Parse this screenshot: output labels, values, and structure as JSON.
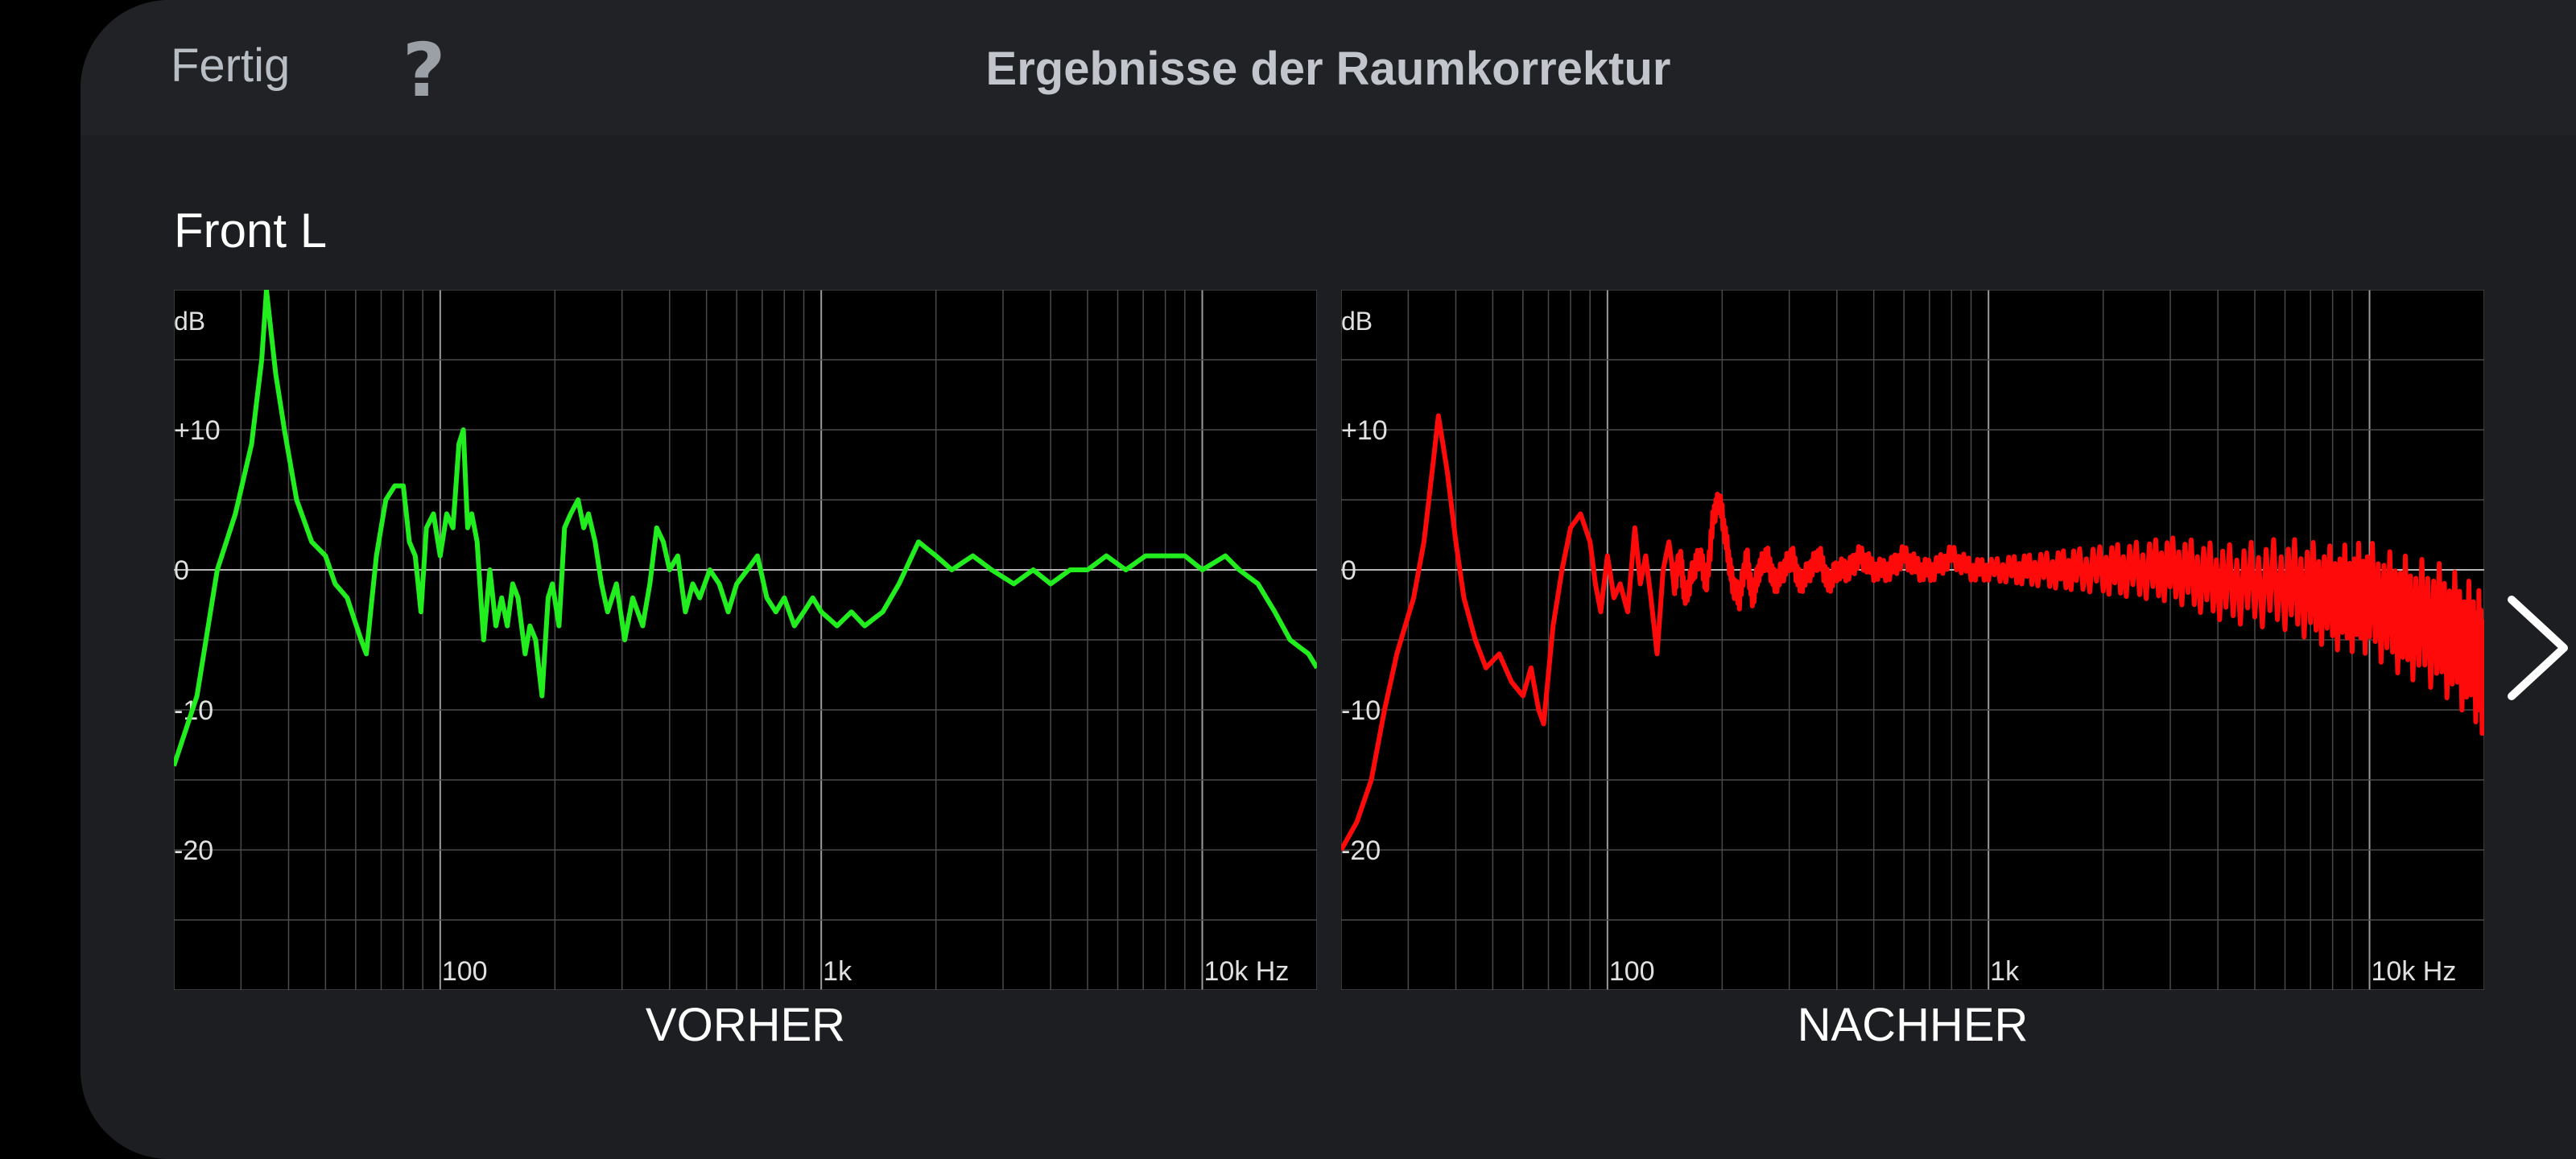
{
  "header": {
    "done_label": "Fertig",
    "help_label": "?",
    "title": "Ergebnisse der Raumkorrektur"
  },
  "channel": "Front L",
  "colors": {
    "before_curve": "#22ee1f",
    "after_curve": "#ff0a0a",
    "background": "#1c1e22",
    "chart_bg": "#000000"
  },
  "icons": {
    "help": "question-mark-icon",
    "next": "chevron-right-icon"
  },
  "chart_data": [
    {
      "type": "line",
      "caption": "VORHER",
      "x_scale": "log",
      "xlim": [
        20,
        20000
      ],
      "ylim": [
        -30,
        20
      ],
      "yunit": "dB",
      "xtick_labels": [
        "100",
        "1k",
        "10k Hz"
      ],
      "xtick_values": [
        100,
        1000,
        10000
      ],
      "ytick_labels": [
        "+10",
        "0",
        "-10",
        "-20"
      ],
      "ytick_values": [
        10,
        0,
        -10,
        -20
      ],
      "grid": true,
      "series": [
        {
          "color": "#22ee1f",
          "points": [
            [
              20,
              -14
            ],
            [
              23,
              -9
            ],
            [
              26,
              0
            ],
            [
              29,
              4
            ],
            [
              32,
              9
            ],
            [
              34,
              15
            ],
            [
              35,
              20
            ],
            [
              37,
              14
            ],
            [
              39,
              10
            ],
            [
              42,
              5
            ],
            [
              46,
              2
            ],
            [
              50,
              1
            ],
            [
              53,
              -1
            ],
            [
              57,
              -2
            ],
            [
              62,
              -5
            ],
            [
              64,
              -6
            ],
            [
              68,
              1
            ],
            [
              72,
              5
            ],
            [
              76,
              6
            ],
            [
              80,
              6
            ],
            [
              83,
              2
            ],
            [
              86,
              1
            ],
            [
              89,
              -3
            ],
            [
              92,
              3
            ],
            [
              96,
              4
            ],
            [
              100,
              1
            ],
            [
              104,
              4
            ],
            [
              108,
              3
            ],
            [
              112,
              9
            ],
            [
              115,
              10
            ],
            [
              118,
              3
            ],
            [
              121,
              4
            ],
            [
              125,
              2
            ],
            [
              130,
              -5
            ],
            [
              135,
              0
            ],
            [
              140,
              -4
            ],
            [
              145,
              -2
            ],
            [
              150,
              -4
            ],
            [
              155,
              -1
            ],
            [
              160,
              -2
            ],
            [
              167,
              -6
            ],
            [
              172,
              -4
            ],
            [
              178,
              -5
            ],
            [
              185,
              -9
            ],
            [
              192,
              -2
            ],
            [
              197,
              -1
            ],
            [
              205,
              -4
            ],
            [
              212,
              3
            ],
            [
              220,
              4
            ],
            [
              230,
              5
            ],
            [
              238,
              3
            ],
            [
              245,
              4
            ],
            [
              255,
              2
            ],
            [
              265,
              -1
            ],
            [
              275,
              -3
            ],
            [
              290,
              -1
            ],
            [
              305,
              -5
            ],
            [
              320,
              -2
            ],
            [
              340,
              -4
            ],
            [
              355,
              -1
            ],
            [
              370,
              3
            ],
            [
              385,
              2
            ],
            [
              400,
              0
            ],
            [
              420,
              1
            ],
            [
              440,
              -3
            ],
            [
              460,
              -1
            ],
            [
              480,
              -2
            ],
            [
              510,
              0
            ],
            [
              540,
              -1
            ],
            [
              570,
              -3
            ],
            [
              600,
              -1
            ],
            [
              640,
              0
            ],
            [
              680,
              1
            ],
            [
              720,
              -2
            ],
            [
              760,
              -3
            ],
            [
              800,
              -2
            ],
            [
              850,
              -4
            ],
            [
              900,
              -3
            ],
            [
              950,
              -2
            ],
            [
              1000,
              -3
            ],
            [
              1100,
              -4
            ],
            [
              1200,
              -3
            ],
            [
              1300,
              -4
            ],
            [
              1450,
              -3
            ],
            [
              1600,
              -1
            ],
            [
              1800,
              2
            ],
            [
              2000,
              1
            ],
            [
              2200,
              0
            ],
            [
              2500,
              1
            ],
            [
              2800,
              0
            ],
            [
              3200,
              -1
            ],
            [
              3600,
              0
            ],
            [
              4000,
              -1
            ],
            [
              4500,
              0
            ],
            [
              5000,
              0
            ],
            [
              5600,
              1
            ],
            [
              6300,
              0
            ],
            [
              7100,
              1
            ],
            [
              8000,
              1
            ],
            [
              9000,
              1
            ],
            [
              10000,
              0
            ],
            [
              11500,
              1
            ],
            [
              12500,
              0
            ],
            [
              14000,
              -1
            ],
            [
              15500,
              -3
            ],
            [
              17000,
              -5
            ],
            [
              19000,
              -6
            ],
            [
              20000,
              -7
            ]
          ]
        }
      ]
    },
    {
      "type": "line",
      "caption": "NACHHER",
      "x_scale": "log",
      "xlim": [
        20,
        20000
      ],
      "ylim": [
        -30,
        20
      ],
      "yunit": "dB",
      "xtick_labels": [
        "100",
        "1k",
        "10k Hz"
      ],
      "xtick_values": [
        100,
        1000,
        10000
      ],
      "ytick_labels": [
        "+10",
        "0",
        "-10",
        "-20"
      ],
      "ytick_values": [
        10,
        0,
        -10,
        -20
      ],
      "grid": true,
      "series": [
        {
          "color": "#ff0a0a",
          "points": [
            [
              20,
              -20
            ],
            [
              22,
              -18
            ],
            [
              24,
              -15
            ],
            [
              26,
              -10
            ],
            [
              28,
              -6
            ],
            [
              31,
              -2
            ],
            [
              33,
              2
            ],
            [
              35,
              8
            ],
            [
              36,
              11
            ],
            [
              38,
              7
            ],
            [
              40,
              2
            ],
            [
              42,
              -2
            ],
            [
              45,
              -5
            ],
            [
              48,
              -7
            ],
            [
              52,
              -6
            ],
            [
              56,
              -8
            ],
            [
              60,
              -9
            ],
            [
              63,
              -7
            ],
            [
              66,
              -10
            ],
            [
              68,
              -11
            ],
            [
              72,
              -4
            ],
            [
              76,
              0
            ],
            [
              80,
              3
            ],
            [
              85,
              4
            ],
            [
              90,
              2
            ],
            [
              93,
              -1
            ],
            [
              96,
              -3
            ],
            [
              100,
              1
            ],
            [
              104,
              -2
            ],
            [
              108,
              -1
            ],
            [
              113,
              -3
            ],
            [
              118,
              3
            ],
            [
              122,
              -1
            ],
            [
              126,
              1
            ],
            [
              130,
              -2
            ],
            [
              135,
              -6
            ],
            [
              140,
              0
            ],
            [
              145,
              2
            ],
            [
              150,
              -1
            ],
            [
              155,
              1
            ],
            [
              160,
              -2
            ],
            [
              168,
              0
            ],
            [
              175,
              1
            ],
            [
              182,
              -1
            ],
            [
              190,
              4
            ],
            [
              197,
              5
            ],
            [
              205,
              2
            ],
            [
              213,
              -1
            ],
            [
              222,
              -2
            ],
            [
              232,
              1
            ],
            [
              240,
              -2
            ],
            [
              250,
              0
            ],
            [
              262,
              1
            ],
            [
              275,
              -1
            ],
            [
              290,
              0
            ],
            [
              305,
              1
            ],
            [
              320,
              -1
            ],
            [
              340,
              0
            ],
            [
              360,
              1
            ],
            [
              380,
              -1
            ],
            [
              400,
              0
            ],
            [
              430,
              0
            ],
            [
              460,
              1
            ],
            [
              500,
              0
            ],
            [
              550,
              0
            ],
            [
              600,
              1
            ],
            [
              660,
              0
            ],
            [
              720,
              0
            ],
            [
              800,
              1
            ],
            [
              900,
              0
            ],
            [
              1000,
              0
            ],
            [
              1150,
              0
            ],
            [
              1300,
              0
            ],
            [
              1500,
              0
            ],
            [
              1700,
              0
            ],
            [
              2000,
              0
            ],
            [
              2300,
              0
            ],
            [
              2700,
              0
            ],
            [
              3100,
              0
            ],
            [
              3600,
              -0.5
            ],
            [
              4200,
              -1
            ],
            [
              5000,
              -1
            ],
            [
              6000,
              -1
            ],
            [
              7000,
              -1.5
            ],
            [
              8000,
              -2
            ],
            [
              9000,
              -2
            ],
            [
              10000,
              -2
            ],
            [
              11500,
              -3
            ],
            [
              13000,
              -3.5
            ],
            [
              15000,
              -4
            ],
            [
              17000,
              -5
            ],
            [
              19000,
              -6
            ],
            [
              20000,
              -7
            ]
          ]
        }
      ]
    }
  ]
}
